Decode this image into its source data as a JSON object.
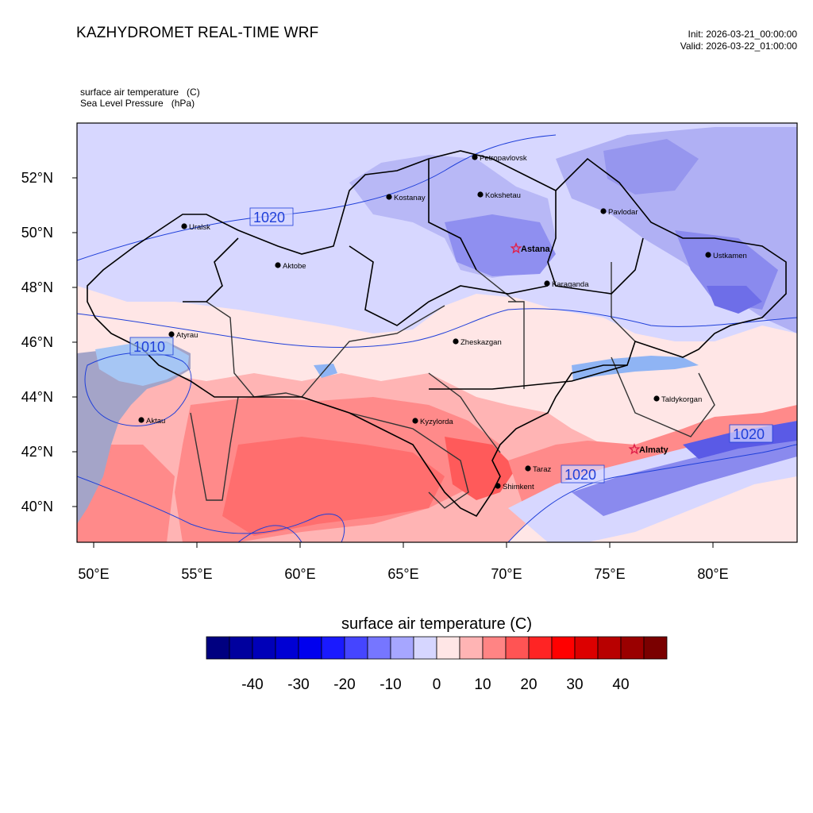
{
  "header": {
    "title": "KAZHYDROMET REAL-TIME WRF",
    "init": "Init: 2026-03-21_00:00:00",
    "valid": "Valid: 2026-03-22_01:00:00"
  },
  "fields": {
    "line1": "surface air temperature   (C)",
    "line2": "Sea Level Pressure   (hPa)"
  },
  "axes": {
    "lat_labels": [
      "52°N",
      "50°N",
      "48°N",
      "46°N",
      "44°N",
      "42°N",
      "40°N"
    ],
    "lon_labels": [
      "50°E",
      "55°E",
      "60°E",
      "65°E",
      "70°E",
      "75°E",
      "80°E"
    ]
  },
  "cities": [
    {
      "name": "Petropavlovsk",
      "symbol": "dot"
    },
    {
      "name": "Kostanay",
      "symbol": "dot"
    },
    {
      "name": "Kokshetau",
      "symbol": "dot"
    },
    {
      "name": "Pavlodar",
      "symbol": "dot"
    },
    {
      "name": "Uralsk",
      "symbol": "dot"
    },
    {
      "name": "Aktobe",
      "symbol": "dot"
    },
    {
      "name": "Astana",
      "symbol": "star"
    },
    {
      "name": "Ustkamen",
      "symbol": "dot"
    },
    {
      "name": "Karaganda",
      "symbol": "dot"
    },
    {
      "name": "Atyrau",
      "symbol": "dot"
    },
    {
      "name": "Zheskazgan",
      "symbol": "dot"
    },
    {
      "name": "Taldykorgan",
      "symbol": "dot"
    },
    {
      "name": "Aktau",
      "symbol": "dot"
    },
    {
      "name": "Kyzylorda",
      "symbol": "dot"
    },
    {
      "name": "Almaty",
      "symbol": "star"
    },
    {
      "name": "Taraz",
      "symbol": "dot"
    },
    {
      "name": "Shimkent",
      "symbol": "dot"
    }
  ],
  "isobar_labels": [
    "1020",
    "1010",
    "1020",
    "1020"
  ],
  "colorbar": {
    "title": "surface air temperature  (C)",
    "tick_labels": [
      "-40",
      "-30",
      "-20",
      "-10",
      "0",
      "10",
      "20",
      "30",
      "40"
    ],
    "colors": [
      "#000080",
      "#00009e",
      "#0000b8",
      "#0000d4",
      "#0000ee",
      "#1a1aff",
      "#4545ff",
      "#7676ff",
      "#a6a6ff",
      "#d6d6ff",
      "#ffe6e6",
      "#ffb4b4",
      "#ff8484",
      "#ff5454",
      "#ff2424",
      "#ff0000",
      "#dc0000",
      "#b80000",
      "#9a0000",
      "#7a0000"
    ]
  },
  "colors": {
    "isobar": "#1f3fd9",
    "star": "#e0204a",
    "border_country": "#000000",
    "border_region": "#333333"
  }
}
